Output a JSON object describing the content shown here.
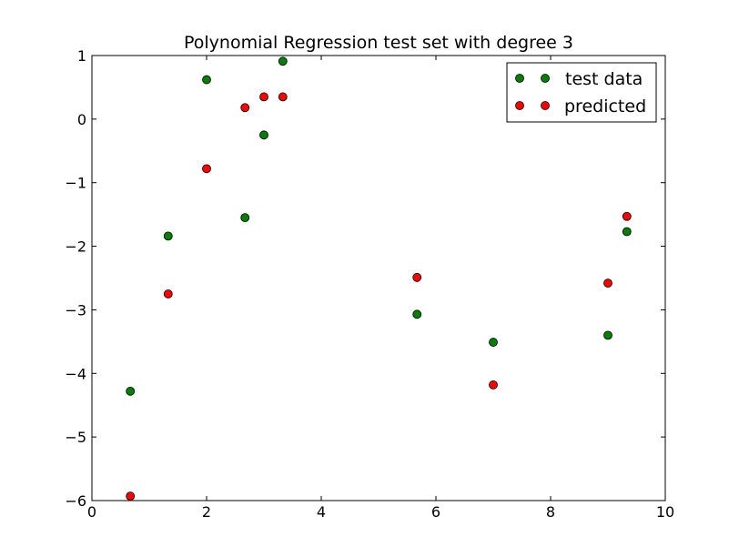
{
  "chart_data": {
    "type": "scatter",
    "title": "Polynomial Regression test set with degree 3",
    "xlabel": "",
    "ylabel": "",
    "xlim": [
      0,
      10
    ],
    "ylim": [
      -6,
      1
    ],
    "grid": false,
    "legend_placement": "upper right",
    "xticks": [
      0,
      2,
      4,
      6,
      8,
      10
    ],
    "yticks": [
      1,
      0,
      -1,
      -2,
      -3,
      -4,
      -5,
      -6
    ],
    "xtick_labels": [
      "0",
      "2",
      "4",
      "6",
      "8",
      "10"
    ],
    "ytick_labels": [
      "1",
      "0",
      "−1",
      "−2",
      "−3",
      "−4",
      "−5",
      "−6"
    ],
    "series": [
      {
        "name": "test data",
        "color": "#008000",
        "x": [
          0.67,
          1.33,
          2.0,
          2.67,
          3.0,
          3.33,
          5.67,
          7.0,
          9.0,
          9.33
        ],
        "y": [
          -4.28,
          -1.84,
          0.62,
          -1.55,
          -0.25,
          0.91,
          -3.07,
          -3.51,
          -3.4,
          -1.77
        ]
      },
      {
        "name": "predicted",
        "color": "#ff0000",
        "x": [
          0.67,
          1.33,
          2.0,
          2.67,
          3.0,
          3.33,
          5.67,
          7.0,
          9.0,
          9.33
        ],
        "y": [
          -5.93,
          -2.75,
          -0.78,
          0.18,
          0.35,
          0.35,
          -2.49,
          -4.18,
          -2.58,
          -1.53
        ]
      }
    ]
  }
}
